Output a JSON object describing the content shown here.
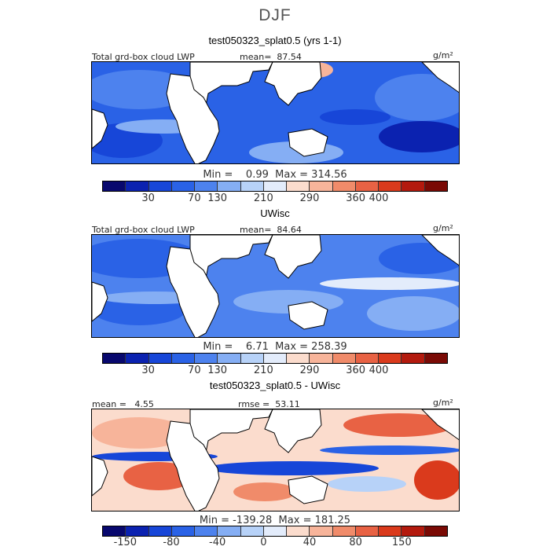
{
  "figure": {
    "title": "DJF",
    "panels": [
      {
        "title": "test050323_splat0.5 (yrs 1-1)",
        "left_label": "Total grd-box cloud LWP",
        "center_label": "mean=  87.54",
        "units": "g/m²",
        "minmax": "Min =    0.99  Max = 314.56",
        "ticks": [
          "30",
          "70",
          "130",
          "210",
          "290",
          "360",
          "400"
        ]
      },
      {
        "title": "UWisc",
        "left_label": "Total grd-box cloud LWP",
        "center_label": "mean=  84.64",
        "units": "g/m²",
        "minmax": "Min =    6.71  Max = 258.39",
        "ticks": [
          "30",
          "70",
          "130",
          "210",
          "290",
          "360",
          "400"
        ]
      },
      {
        "title": "test050323_splat0.5 - UWisc",
        "left_label": "mean =   4.55",
        "center_label": "rmse =  53.11",
        "units": "g/m²",
        "minmax": "Min = -139.28  Max = 181.25",
        "ticks": [
          "-150",
          "-80",
          "-40",
          "0",
          "40",
          "80",
          "150"
        ]
      }
    ]
  },
  "colors": {
    "abs_scale": [
      "#08086e",
      "#0b22b0",
      "#1746d8",
      "#2a62e6",
      "#4d82ee",
      "#85aef4",
      "#b7d2f8",
      "#e3ecfb",
      "#fbdccd",
      "#f7b49a",
      "#f08b6a",
      "#e86244",
      "#da3a1c",
      "#b31a0e",
      "#7a0a05"
    ],
    "diff_scale": [
      "#08086e",
      "#0b22b0",
      "#1746d8",
      "#2a62e6",
      "#4d82ee",
      "#85aef4",
      "#b7d2f8",
      "#e3ecfb",
      "#fbdccd",
      "#f7b49a",
      "#f08b6a",
      "#e86244",
      "#da3a1c",
      "#b31a0e",
      "#7a0a05"
    ]
  },
  "chart_data": [
    {
      "type": "heatmap",
      "title": "test050323_splat0.5 (yrs 1-1)",
      "variable": "Total grd-box cloud LWP",
      "units": "g/m2",
      "mean": 87.54,
      "min": 0.99,
      "max": 314.56,
      "colorbar_ticks": [
        30,
        70,
        130,
        210,
        290,
        360,
        400
      ]
    },
    {
      "type": "heatmap",
      "title": "UWisc",
      "variable": "Total grd-box cloud LWP",
      "units": "g/m2",
      "mean": 84.64,
      "min": 6.71,
      "max": 258.39,
      "colorbar_ticks": [
        30,
        70,
        130,
        210,
        290,
        360,
        400
      ]
    },
    {
      "type": "heatmap",
      "title": "test050323_splat0.5 - UWisc",
      "units": "g/m2",
      "mean": 4.55,
      "rmse": 53.11,
      "min": -139.28,
      "max": 181.25,
      "colorbar_ticks": [
        -150,
        -80,
        -40,
        0,
        40,
        80,
        150
      ]
    }
  ]
}
